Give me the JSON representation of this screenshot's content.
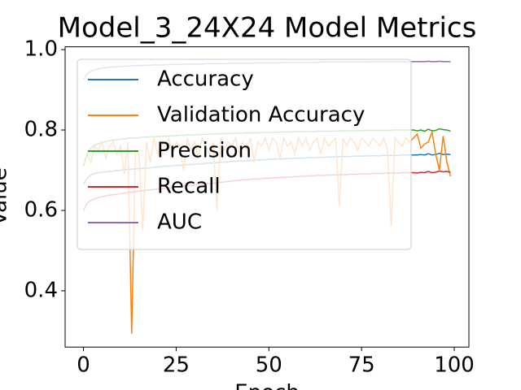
{
  "chart_data": {
    "type": "line",
    "title": "Model_3_24X24 Model Metrics",
    "xlabel": "Epoch",
    "ylabel": "Value",
    "x": [
      0,
      1,
      2,
      3,
      4,
      5,
      6,
      7,
      8,
      9,
      10,
      11,
      12,
      13,
      14,
      15,
      16,
      17,
      18,
      19,
      20,
      21,
      22,
      23,
      24,
      25,
      26,
      27,
      28,
      29,
      30,
      31,
      32,
      33,
      34,
      35,
      36,
      37,
      38,
      39,
      40,
      41,
      42,
      43,
      44,
      45,
      46,
      47,
      48,
      49,
      50,
      51,
      52,
      53,
      54,
      55,
      56,
      57,
      58,
      59,
      60,
      61,
      62,
      63,
      64,
      65,
      66,
      67,
      68,
      69,
      70,
      71,
      72,
      73,
      74,
      75,
      76,
      77,
      78,
      79,
      80,
      81,
      82,
      83,
      84,
      85,
      86,
      87,
      88,
      89,
      90,
      91,
      92,
      93,
      94,
      95,
      96,
      97,
      98,
      99
    ],
    "xlim": [
      -4.95,
      103.95
    ],
    "ylim": [
      0.26,
      1.007
    ],
    "xticks": [
      0,
      25,
      50,
      75,
      100
    ],
    "yticks": [
      0.4,
      0.6,
      0.8,
      {
        "value": 1,
        "label": "1.0"
      }
    ],
    "legend": "upper left",
    "series": [
      {
        "name": "Accuracy",
        "color": "#1f77b4",
        "values": [
          0.665,
          0.68,
          0.688,
          0.692,
          0.694,
          0.695,
          0.696,
          0.697,
          0.698,
          0.699,
          0.7,
          0.701,
          0.702,
          0.703,
          0.703,
          0.704,
          0.705,
          0.705,
          0.706,
          0.707,
          0.708,
          0.709,
          0.71,
          0.71,
          0.711,
          0.712,
          0.712,
          0.713,
          0.714,
          0.714,
          0.715,
          0.716,
          0.716,
          0.717,
          0.718,
          0.718,
          0.719,
          0.72,
          0.72,
          0.721,
          0.722,
          0.722,
          0.723,
          0.723,
          0.724,
          0.724,
          0.725,
          0.725,
          0.726,
          0.726,
          0.727,
          0.727,
          0.728,
          0.728,
          0.728,
          0.729,
          0.729,
          0.73,
          0.73,
          0.73,
          0.731,
          0.731,
          0.731,
          0.732,
          0.732,
          0.732,
          0.733,
          0.733,
          0.733,
          0.734,
          0.734,
          0.734,
          0.734,
          0.735,
          0.735,
          0.735,
          0.735,
          0.736,
          0.736,
          0.736,
          0.736,
          0.737,
          0.737,
          0.737,
          0.737,
          0.737,
          0.738,
          0.738,
          0.738,
          0.738,
          0.738,
          0.739,
          0.738,
          0.741,
          0.738,
          0.739,
          0.742,
          0.739,
          0.74,
          0.739
        ]
      },
      {
        "name": "Validation Accuracy",
        "color": "#ff7f0e",
        "values": [
          0.71,
          0.74,
          0.72,
          0.76,
          0.75,
          0.77,
          0.73,
          0.76,
          0.77,
          0.74,
          0.76,
          0.69,
          0.77,
          0.293,
          0.75,
          0.74,
          0.55,
          0.77,
          0.72,
          0.78,
          0.74,
          0.77,
          0.76,
          0.78,
          0.73,
          0.77,
          0.76,
          0.7,
          0.78,
          0.75,
          0.77,
          0.73,
          0.78,
          0.76,
          0.74,
          0.77,
          0.6,
          0.78,
          0.75,
          0.77,
          0.76,
          0.78,
          0.74,
          0.77,
          0.75,
          0.78,
          0.72,
          0.77,
          0.76,
          0.78,
          0.75,
          0.78,
          0.77,
          0.73,
          0.78,
          0.76,
          0.77,
          0.74,
          0.78,
          0.76,
          0.78,
          0.75,
          0.77,
          0.78,
          0.74,
          0.78,
          0.76,
          0.77,
          0.78,
          0.61,
          0.78,
          0.76,
          0.78,
          0.77,
          0.75,
          0.78,
          0.77,
          0.76,
          0.78,
          0.77,
          0.76,
          0.78,
          0.75,
          0.56,
          0.78,
          0.77,
          0.76,
          0.78,
          0.77,
          0.78,
          0.79,
          0.755,
          0.765,
          0.77,
          0.795,
          0.74,
          0.7,
          0.785,
          0.72,
          0.685
        ]
      },
      {
        "name": "Precision",
        "color": "#2ca02c",
        "values": [
          0.71,
          0.74,
          0.755,
          0.762,
          0.766,
          0.769,
          0.771,
          0.773,
          0.775,
          0.776,
          0.777,
          0.778,
          0.779,
          0.78,
          0.78,
          0.781,
          0.782,
          0.782,
          0.783,
          0.783,
          0.784,
          0.784,
          0.785,
          0.785,
          0.786,
          0.786,
          0.787,
          0.787,
          0.788,
          0.788,
          0.788,
          0.789,
          0.789,
          0.789,
          0.79,
          0.79,
          0.79,
          0.791,
          0.791,
          0.791,
          0.792,
          0.792,
          0.792,
          0.792,
          0.793,
          0.793,
          0.793,
          0.793,
          0.794,
          0.794,
          0.794,
          0.794,
          0.795,
          0.795,
          0.795,
          0.795,
          0.795,
          0.796,
          0.796,
          0.796,
          0.796,
          0.796,
          0.796,
          0.797,
          0.797,
          0.797,
          0.797,
          0.797,
          0.797,
          0.798,
          0.798,
          0.798,
          0.798,
          0.798,
          0.798,
          0.798,
          0.799,
          0.799,
          0.799,
          0.799,
          0.799,
          0.799,
          0.799,
          0.799,
          0.8,
          0.8,
          0.8,
          0.8,
          0.8,
          0.8,
          0.798,
          0.8,
          0.797,
          0.802,
          0.798,
          0.799,
          0.803,
          0.801,
          0.8,
          0.797
        ]
      },
      {
        "name": "Recall",
        "color": "#d62728",
        "values": [
          0.6,
          0.618,
          0.625,
          0.629,
          0.632,
          0.634,
          0.636,
          0.638,
          0.639,
          0.64,
          0.642,
          0.643,
          0.645,
          0.646,
          0.647,
          0.648,
          0.649,
          0.65,
          0.651,
          0.652,
          0.653,
          0.654,
          0.655,
          0.656,
          0.657,
          0.658,
          0.659,
          0.66,
          0.661,
          0.662,
          0.663,
          0.664,
          0.665,
          0.666,
          0.667,
          0.668,
          0.669,
          0.67,
          0.671,
          0.672,
          0.673,
          0.674,
          0.675,
          0.676,
          0.676,
          0.677,
          0.678,
          0.678,
          0.679,
          0.68,
          0.68,
          0.681,
          0.681,
          0.682,
          0.682,
          0.683,
          0.683,
          0.684,
          0.684,
          0.685,
          0.685,
          0.686,
          0.686,
          0.687,
          0.687,
          0.687,
          0.688,
          0.688,
          0.688,
          0.689,
          0.689,
          0.689,
          0.69,
          0.69,
          0.69,
          0.691,
          0.691,
          0.691,
          0.692,
          0.692,
          0.692,
          0.692,
          0.693,
          0.693,
          0.693,
          0.693,
          0.694,
          0.694,
          0.694,
          0.694,
          0.693,
          0.695,
          0.694,
          0.697,
          0.694,
          0.695,
          0.698,
          0.696,
          0.697,
          0.695
        ]
      },
      {
        "name": "AUC",
        "color": "#9467bd",
        "values": [
          0.925,
          0.94,
          0.946,
          0.95,
          0.952,
          0.954,
          0.955,
          0.956,
          0.957,
          0.958,
          0.958,
          0.959,
          0.959,
          0.96,
          0.96,
          0.96,
          0.961,
          0.961,
          0.961,
          0.962,
          0.962,
          0.962,
          0.962,
          0.963,
          0.963,
          0.963,
          0.963,
          0.963,
          0.964,
          0.964,
          0.964,
          0.964,
          0.964,
          0.965,
          0.965,
          0.965,
          0.965,
          0.965,
          0.965,
          0.966,
          0.966,
          0.966,
          0.966,
          0.966,
          0.966,
          0.966,
          0.967,
          0.967,
          0.967,
          0.967,
          0.967,
          0.967,
          0.967,
          0.967,
          0.968,
          0.968,
          0.968,
          0.968,
          0.968,
          0.968,
          0.968,
          0.968,
          0.968,
          0.968,
          0.969,
          0.969,
          0.969,
          0.969,
          0.969,
          0.969,
          0.969,
          0.969,
          0.969,
          0.969,
          0.969,
          0.969,
          0.969,
          0.97,
          0.97,
          0.97,
          0.97,
          0.97,
          0.97,
          0.97,
          0.97,
          0.97,
          0.97,
          0.97,
          0.97,
          0.97,
          0.97,
          0.97,
          0.97,
          0.971,
          0.97,
          0.97,
          0.971,
          0.97,
          0.97,
          0.97
        ]
      }
    ]
  }
}
